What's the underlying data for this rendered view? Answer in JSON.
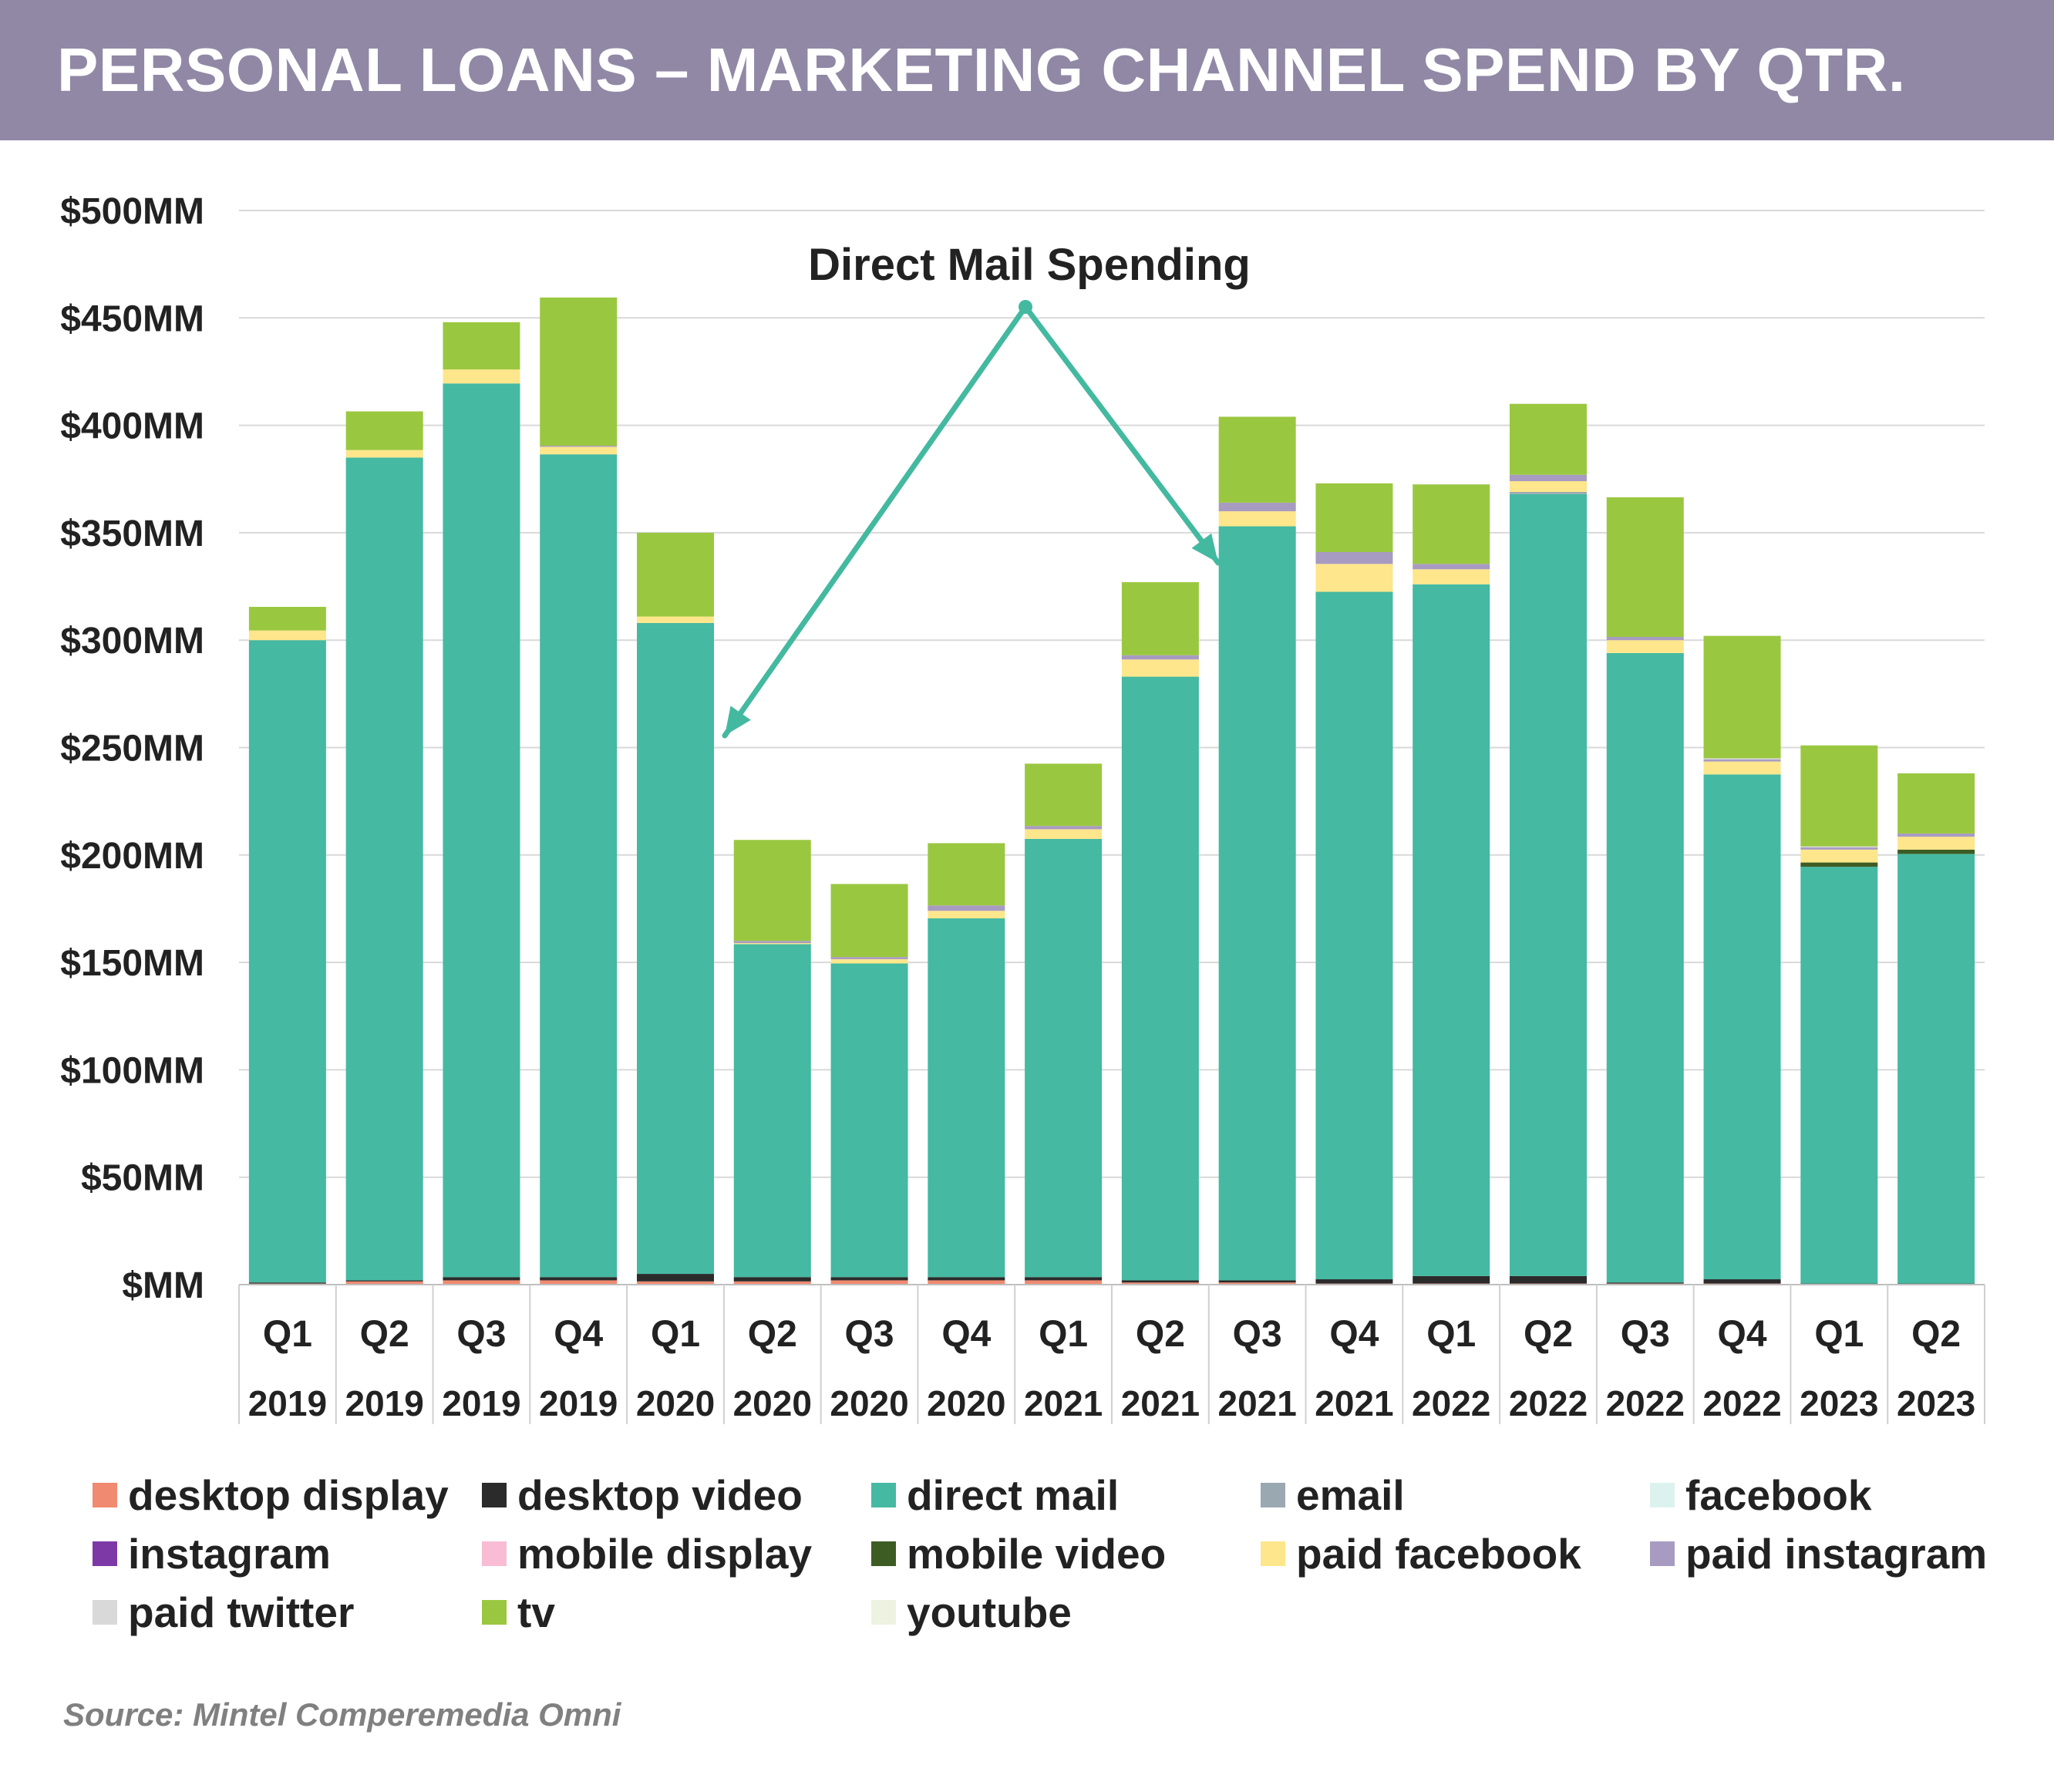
{
  "header": {
    "title": "PERSONAL LOANS – MARKETING CHANNEL SPEND BY QTR."
  },
  "source": "Source: Mintel Comperemedia Omni",
  "annotation": {
    "text": "Direct Mail Spending",
    "color": "#43b9a0"
  },
  "chart_data": {
    "type": "bar",
    "stacked": true,
    "title": "PERSONAL LOANS – MARKETING CHANNEL SPEND BY QTR.",
    "ylabel": "",
    "xlabel": "",
    "ylim": [
      0,
      500
    ],
    "y_ticks": [
      "$MM",
      "$50MM",
      "$100MM",
      "$150MM",
      "$200MM",
      "$250MM",
      "$300MM",
      "$350MM",
      "$400MM",
      "$450MM",
      "$500MM"
    ],
    "grid": true,
    "legend_position": "bottom",
    "categories": [
      [
        "Q1",
        "2019"
      ],
      [
        "Q2",
        "2019"
      ],
      [
        "Q3",
        "2019"
      ],
      [
        "Q4",
        "2019"
      ],
      [
        "Q1",
        "2020"
      ],
      [
        "Q2",
        "2020"
      ],
      [
        "Q3",
        "2020"
      ],
      [
        "Q4",
        "2020"
      ],
      [
        "Q1",
        "2021"
      ],
      [
        "Q2",
        "2021"
      ],
      [
        "Q3",
        "2021"
      ],
      [
        "Q4",
        "2021"
      ],
      [
        "Q1",
        "2022"
      ],
      [
        "Q2",
        "2022"
      ],
      [
        "Q3",
        "2022"
      ],
      [
        "Q4",
        "2022"
      ],
      [
        "Q1",
        "2023"
      ],
      [
        "Q2",
        "2023"
      ]
    ],
    "series": [
      {
        "name": "desktop display",
        "color": "#f08a70",
        "values": [
          0.5,
          1.5,
          2,
          2,
          1.5,
          1.5,
          2,
          2,
          2,
          1,
          1,
          0.5,
          0.5,
          0.5,
          0.5,
          0.5,
          0.3,
          0.3
        ]
      },
      {
        "name": "desktop video",
        "color": "#2b2b2b",
        "values": [
          0.5,
          0.5,
          1.5,
          1.5,
          3.5,
          2,
          1.5,
          1.5,
          1.5,
          1,
          1,
          2,
          3.5,
          3.5,
          0.5,
          2,
          0.2,
          0.2
        ]
      },
      {
        "name": "direct mail",
        "color": "#45b9a1",
        "values": [
          299,
          383,
          416,
          383,
          303,
          155,
          146,
          167,
          204,
          281,
          351,
          320,
          322,
          364,
          293,
          235,
          194,
          200
        ]
      },
      {
        "name": "email",
        "color": "#9aa8b2",
        "values": [
          0,
          0,
          0,
          0,
          0,
          0,
          0,
          0,
          0,
          0,
          0,
          0,
          0,
          1,
          0,
          0,
          0,
          0
        ]
      },
      {
        "name": "facebook",
        "color": "#dcf2ef",
        "values": [
          0,
          0,
          0,
          0,
          0,
          0,
          0,
          0,
          0,
          0,
          0,
          0,
          0,
          0,
          0,
          0,
          0,
          0
        ]
      },
      {
        "name": "instagram",
        "color": "#7d3aa6",
        "values": [
          0,
          0,
          0,
          0,
          0,
          0,
          0,
          0,
          0,
          0,
          0,
          0,
          0,
          0,
          0,
          0,
          0,
          0
        ]
      },
      {
        "name": "mobile display",
        "color": "#f8bcd4",
        "values": [
          0,
          0,
          0,
          0,
          0,
          0,
          0,
          0,
          0,
          0,
          0,
          0,
          0,
          0,
          0,
          0,
          0,
          0
        ]
      },
      {
        "name": "mobile video",
        "color": "#3d5c24",
        "values": [
          0,
          0,
          0,
          0,
          0,
          0,
          0,
          0,
          0,
          0,
          0,
          0,
          0,
          0,
          0,
          0,
          2,
          2
        ]
      },
      {
        "name": "paid facebook",
        "color": "#fde68b",
        "values": [
          4.5,
          3.5,
          6.5,
          3.5,
          3,
          0.5,
          2,
          3.5,
          4.5,
          8,
          7,
          13,
          7,
          5,
          6,
          6,
          6,
          6
        ]
      },
      {
        "name": "paid instagram",
        "color": "#a89bc2",
        "values": [
          0,
          0,
          0,
          0.5,
          0,
          1,
          1,
          2.5,
          1.5,
          2,
          4,
          5.5,
          2.5,
          3,
          1.5,
          1,
          1,
          1.5
        ]
      },
      {
        "name": "paid twitter",
        "color": "#d9d9d9",
        "values": [
          0,
          0,
          0,
          0,
          0,
          0,
          0,
          0,
          0,
          0,
          0,
          0,
          0,
          0,
          0,
          0.5,
          0.5,
          0
        ]
      },
      {
        "name": "tv",
        "color": "#9ac740",
        "values": [
          11,
          18,
          22,
          69,
          39,
          47,
          34,
          29,
          29,
          34,
          40,
          32,
          37,
          33,
          65,
          57,
          47,
          28
        ]
      },
      {
        "name": "youtube",
        "color": "#eef2e0",
        "values": [
          0,
          0,
          0,
          0,
          0,
          0,
          0,
          0,
          0,
          0,
          0,
          0,
          0,
          0,
          0,
          0,
          0,
          0
        ]
      }
    ]
  }
}
